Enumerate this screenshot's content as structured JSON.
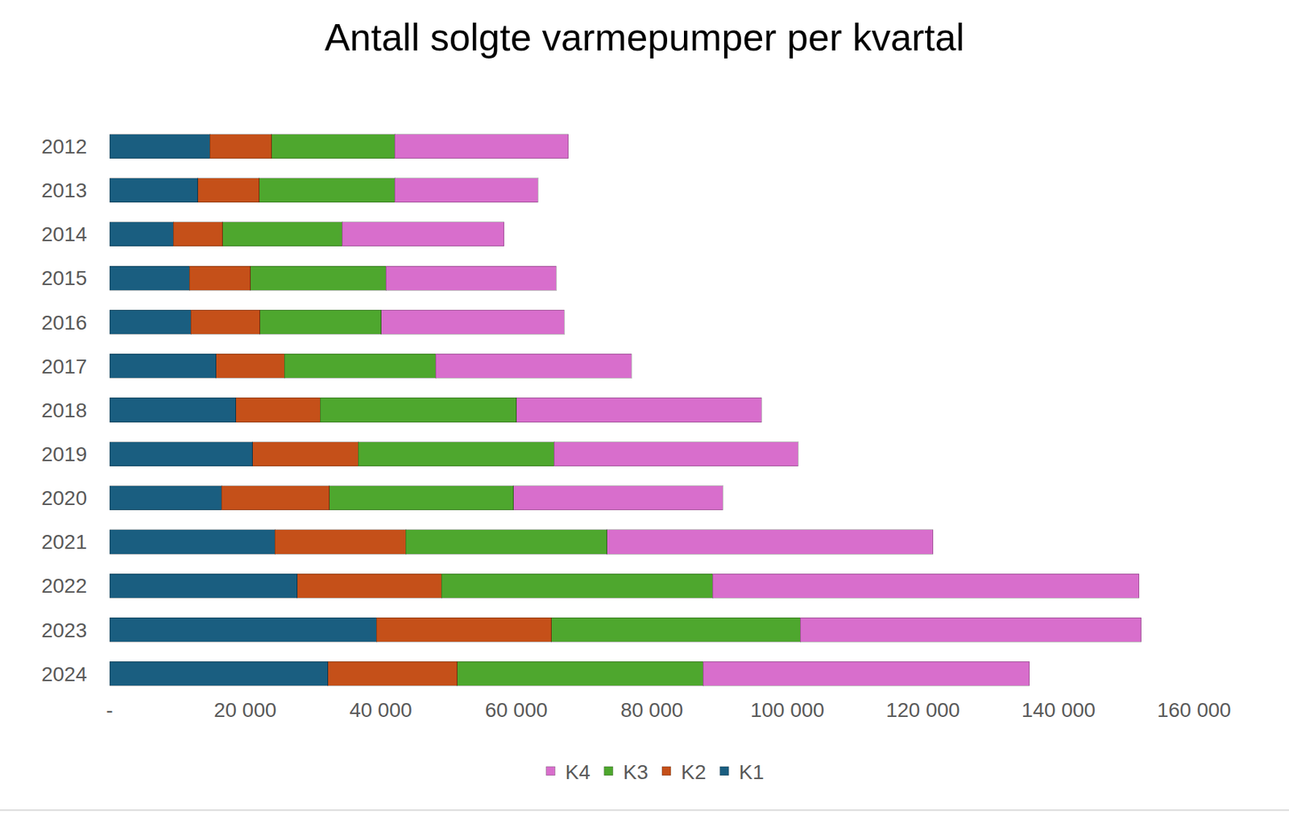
{
  "chart_data": {
    "type": "bar",
    "title": "Antall solgte varmepumper per kvartal",
    "orientation": "horizontal",
    "stacked": true,
    "grid": false,
    "legend": "bottom",
    "categories": [
      "2012",
      "2013",
      "2014",
      "2015",
      "2016",
      "2017",
      "2018",
      "2019",
      "2020",
      "2021",
      "2022",
      "2023",
      "2024"
    ],
    "series": [
      {
        "name": "K1",
        "color": "#1a5e80",
        "values": [
          14800,
          13000,
          9400,
          11800,
          12000,
          15700,
          18600,
          21100,
          16500,
          24400,
          27700,
          39400,
          32200
        ]
      },
      {
        "name": "K2",
        "color": "#c55019",
        "values": [
          9100,
          9100,
          7300,
          9000,
          10200,
          10100,
          12500,
          15600,
          15900,
          19300,
          21300,
          25800,
          19100
        ]
      },
      {
        "name": "K3",
        "color": "#4ea72e",
        "values": [
          18200,
          20000,
          17600,
          20000,
          17900,
          22300,
          28900,
          28900,
          27200,
          29700,
          40000,
          36700,
          36300
        ]
      },
      {
        "name": "K4",
        "color": "#d86ecc",
        "values": [
          25600,
          21100,
          23900,
          25100,
          27000,
          28900,
          36200,
          36000,
          30900,
          48100,
          62900,
          50300,
          48100
        ]
      }
    ],
    "xlim": [
      0,
      160000
    ],
    "xticks": [
      {
        "value": 0,
        "label": "-"
      },
      {
        "value": 20000,
        "label": "20 000"
      },
      {
        "value": 40000,
        "label": "40 000"
      },
      {
        "value": 60000,
        "label": "60 000"
      },
      {
        "value": 80000,
        "label": "80 000"
      },
      {
        "value": 100000,
        "label": "100 000"
      },
      {
        "value": 120000,
        "label": "120 000"
      },
      {
        "value": 140000,
        "label": "140 000"
      },
      {
        "value": 160000,
        "label": "160 000"
      }
    ]
  }
}
